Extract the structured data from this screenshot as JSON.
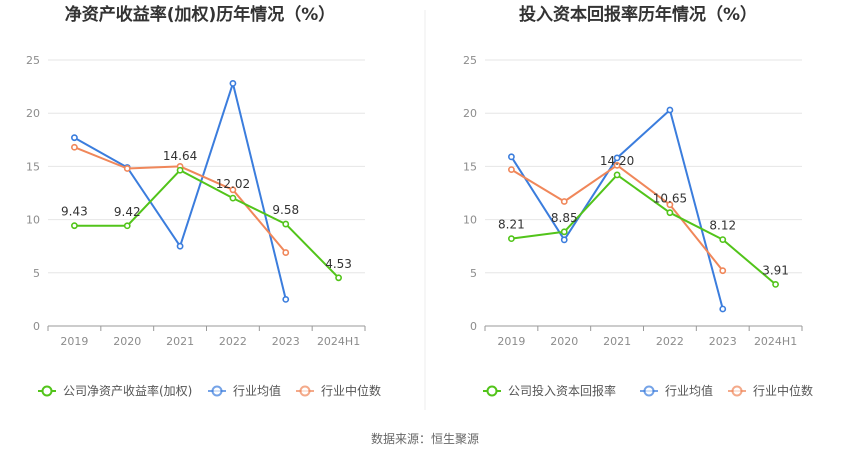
{
  "chart_data": [
    {
      "type": "line",
      "title": "净资产收益率(加权)历年情况（%）",
      "categories": [
        "2019",
        "2020",
        "2021",
        "2022",
        "2023",
        "2024H1"
      ],
      "ylim": [
        0,
        25
      ],
      "yticks": [
        0,
        5,
        10,
        15,
        20,
        25
      ],
      "grid": true,
      "legend_position": "bottom",
      "series": [
        {
          "name": "公司净资产收益率(加权)",
          "color": "#52c41a",
          "values": [
            9.43,
            9.42,
            14.64,
            12.02,
            9.58,
            4.53
          ],
          "labels": [
            "9.43",
            "9.42",
            "14.64",
            "12.02",
            "9.58",
            "4.53"
          ]
        },
        {
          "name": "行业均值",
          "color": "#3b7ddd",
          "values": [
            17.7,
            14.9,
            7.5,
            22.8,
            2.5,
            null
          ]
        },
        {
          "name": "行业中位数",
          "color": "#f0875a",
          "values": [
            16.8,
            14.8,
            15.0,
            12.8,
            6.9,
            null
          ]
        }
      ]
    },
    {
      "type": "line",
      "title": "投入资本回报率历年情况（%）",
      "categories": [
        "2019",
        "2020",
        "2021",
        "2022",
        "2023",
        "2024H1"
      ],
      "ylim": [
        0,
        25
      ],
      "yticks": [
        0,
        5,
        10,
        15,
        20,
        25
      ],
      "grid": true,
      "legend_position": "bottom",
      "series": [
        {
          "name": "公司投入资本回报率",
          "color": "#52c41a",
          "values": [
            8.21,
            8.85,
            14.2,
            10.65,
            8.12,
            3.91
          ],
          "labels": [
            "8.21",
            "8.85",
            "14.20",
            "10.65",
            "8.12",
            "3.91"
          ]
        },
        {
          "name": "行业均值",
          "color": "#3b7ddd",
          "values": [
            15.9,
            8.1,
            15.8,
            20.3,
            1.6,
            null
          ]
        },
        {
          "name": "行业中位数",
          "color": "#f0875a",
          "values": [
            14.7,
            11.7,
            15.1,
            11.4,
            5.2,
            null
          ]
        }
      ]
    }
  ],
  "footer": {
    "source_label": "数据来源：",
    "source_value": "恒生聚源"
  }
}
